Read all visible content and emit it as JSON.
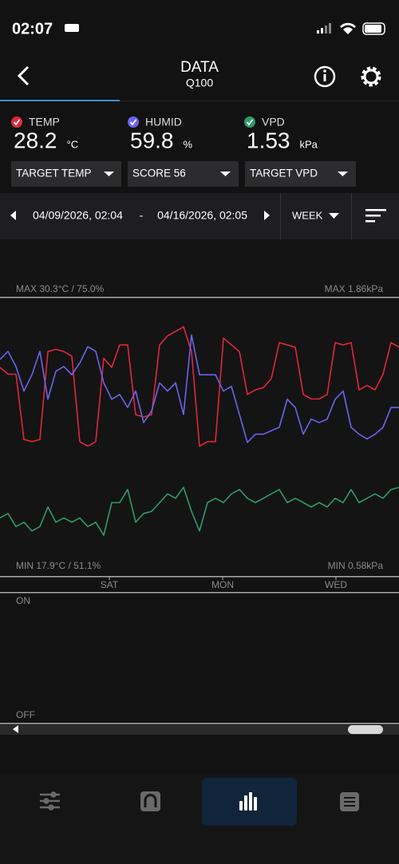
{
  "status_bar": {
    "time": "02:07"
  },
  "header": {
    "title": "DATA",
    "subtitle": "Q100"
  },
  "readings": [
    {
      "label": "TEMP",
      "value": 28.2,
      "unit": "°C",
      "color": "#e3263c"
    },
    {
      "label": "HUMID",
      "value": 59.8,
      "unit": "%",
      "color": "#6b63f0"
    },
    {
      "label": "VPD",
      "value": 1.53,
      "unit": "kPa",
      "color": "#2f9a68"
    }
  ],
  "dropdowns": [
    "TARGET TEMP",
    "SCORE 56",
    "TARGET VPD"
  ],
  "range": {
    "start": "04/09/2026, 02:04",
    "separator": "-",
    "end": "04/16/2026, 02:05",
    "period": "WEEK"
  },
  "chart": {
    "type": "line",
    "max_left": "MAX 30.3°C / 75.0%",
    "max_right": "MAX 1.86kPa",
    "min_left": "MIN 17.9°C / 51.1%",
    "min_right": "MIN 0.58kPa",
    "day_labels": [
      "SAT",
      "MON",
      "WED"
    ],
    "series": [
      {
        "color": "#e3263c",
        "ylim": [
          17.9,
          30.3
        ],
        "values": [
          27.2,
          26.9,
          26.9,
          24.0,
          23.9,
          24.0,
          27.9,
          28.0,
          27.9,
          27.7,
          23.9,
          23.7,
          23.9,
          27.6,
          27.2,
          28.2,
          28.2,
          25.1,
          25.0,
          25.1,
          28.2,
          28.6,
          28.8,
          29.0,
          27.9,
          23.7,
          23.9,
          23.9,
          28.5,
          28.2,
          27.9,
          26.0,
          26.2,
          26.3,
          26.7,
          28.3,
          28.2,
          28.1,
          26.0,
          25.8,
          25.8,
          26.0,
          28.3,
          28.2,
          28.3,
          26.2,
          26.4,
          26.2,
          26.9,
          28.3,
          28.1
        ]
      },
      {
        "color": "#6b63f0",
        "ylim": [
          51.1,
          75.0
        ],
        "values": [
          69.7,
          70.4,
          69.1,
          67.0,
          68.4,
          70.4,
          66.3,
          68.7,
          69.1,
          68.4,
          69.4,
          70.8,
          70.4,
          67.7,
          66.3,
          66.7,
          65.6,
          67.0,
          64.3,
          65.3,
          67.7,
          67.0,
          67.7,
          65.0,
          71.8,
          68.4,
          68.4,
          68.4,
          67.0,
          67.4,
          65.0,
          62.6,
          63.3,
          63.3,
          63.6,
          63.9,
          66.3,
          65.6,
          63.3,
          64.6,
          64.3,
          64.6,
          66.3,
          67.0,
          63.9,
          63.3,
          62.9,
          63.3,
          63.9,
          65.6,
          65.6
        ]
      },
      {
        "color": "#2f9a68",
        "ylim": [
          0.58,
          1.86
        ],
        "values": [
          0.85,
          0.87,
          0.81,
          0.83,
          0.79,
          0.81,
          0.9,
          0.83,
          0.85,
          0.83,
          0.85,
          0.81,
          0.83,
          0.77,
          0.92,
          0.92,
          0.98,
          0.83,
          0.87,
          0.88,
          0.92,
          0.96,
          0.94,
          0.99,
          0.88,
          0.79,
          0.92,
          0.94,
          0.92,
          0.96,
          0.98,
          0.94,
          0.92,
          0.94,
          0.96,
          0.98,
          0.92,
          0.94,
          0.92,
          0.9,
          0.92,
          0.9,
          0.94,
          0.92,
          0.98,
          0.92,
          0.94,
          0.96,
          0.94,
          0.98,
          0.99
        ]
      }
    ]
  },
  "switch_chart": {
    "on": "ON",
    "off": "OFF"
  }
}
